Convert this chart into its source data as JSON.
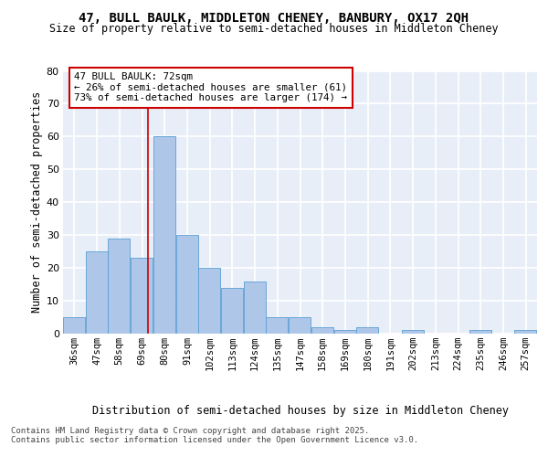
{
  "title": "47, BULL BAULK, MIDDLETON CHENEY, BANBURY, OX17 2QH",
  "subtitle": "Size of property relative to semi-detached houses in Middleton Cheney",
  "xlabel": "Distribution of semi-detached houses by size in Middleton Cheney",
  "ylabel": "Number of semi-detached properties",
  "categories": [
    "36sqm",
    "47sqm",
    "58sqm",
    "69sqm",
    "80sqm",
    "91sqm",
    "102sqm",
    "113sqm",
    "124sqm",
    "135sqm",
    "147sqm",
    "158sqm",
    "169sqm",
    "180sqm",
    "191sqm",
    "202sqm",
    "213sqm",
    "224sqm",
    "235sqm",
    "246sqm",
    "257sqm"
  ],
  "values": [
    5,
    25,
    29,
    23,
    60,
    30,
    20,
    14,
    16,
    5,
    5,
    2,
    1,
    2,
    0,
    1,
    0,
    0,
    1,
    0,
    1
  ],
  "bar_color": "#aec6e8",
  "bar_edge_color": "#5a9fd4",
  "background_color": "#e8eef8",
  "grid_color": "#ffffff",
  "property_sqm": 72,
  "smaller_pct": 26,
  "smaller_n": 61,
  "larger_pct": 73,
  "larger_n": 174,
  "annotation_box_color": "#ffffff",
  "annotation_box_edge": "#cc0000",
  "property_line_color": "#cc0000",
  "footer_line1": "Contains HM Land Registry data © Crown copyright and database right 2025.",
  "footer_line2": "Contains public sector information licensed under the Open Government Licence v3.0.",
  "ylim": [
    0,
    80
  ],
  "yticks": [
    0,
    10,
    20,
    30,
    40,
    50,
    60,
    70,
    80
  ],
  "bin_width": 11
}
